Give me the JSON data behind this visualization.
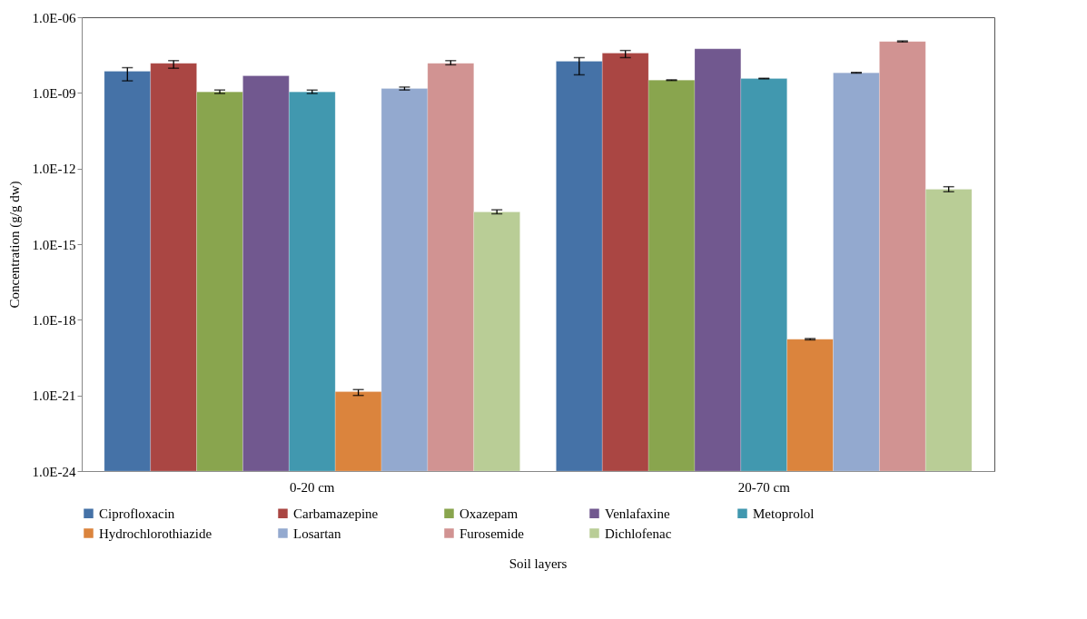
{
  "chart_data": {
    "type": "bar",
    "xlabel": "Soil layers",
    "ylabel": "Concentration (g/g dw)",
    "categories": [
      "0-20 cm",
      "20-70 cm"
    ],
    "log": true,
    "ylim": [
      1e-24,
      1e-06
    ],
    "yticks": [
      {
        "value": 1e-24,
        "label": "1.0E-24"
      },
      {
        "value": 1e-21,
        "label": "1.0E-21"
      },
      {
        "value": 1e-18,
        "label": "1.0E-18"
      },
      {
        "value": 1e-15,
        "label": "1.0E-15"
      },
      {
        "value": 1e-12,
        "label": "1.0E-12"
      },
      {
        "value": 1e-09,
        "label": "1.0E-09"
      },
      {
        "value": 1e-06,
        "label": "1.0E-06"
      }
    ],
    "grid": false,
    "legend": "bottom",
    "series": [
      {
        "name": "Ciprofloxacin",
        "color": "#4572a7",
        "values": [
          7.2e-09,
          1.8e-08
        ],
        "errors": [
          [
            3e-09,
            1e-08
          ],
          [
            5.2e-09,
            2.5e-08
          ]
        ]
      },
      {
        "name": "Carbamazepine",
        "color": "#aa4643",
        "values": [
          1.5e-08,
          3.8e-08
        ],
        "errors": [
          [
            9.5e-09,
            1.9e-08
          ],
          [
            2.5e-08,
            4.8e-08
          ]
        ]
      },
      {
        "name": "Oxazepam",
        "color": "#89a54e",
        "values": [
          1.1e-09,
          3.2e-09
        ],
        "errors": [
          [
            9.5e-10,
            1.3e-09
          ],
          [
            3.1e-09,
            3.3e-09
          ]
        ]
      },
      {
        "name": "Venlafaxine",
        "color": "#71588f",
        "values": [
          4.8e-09,
          5.6e-08
        ],
        "errors": [
          null,
          null
        ]
      },
      {
        "name": "Metoprolol",
        "color": "#4198af",
        "values": [
          1.1e-09,
          3.7e-09
        ],
        "errors": [
          [
            9.5e-10,
            1.3e-09
          ],
          [
            3.6e-09,
            3.8e-09
          ]
        ]
      },
      {
        "name": "Hydrochlorothiazide",
        "color": "#db843d",
        "values": [
          1.4e-21,
          1.7e-19
        ],
        "errors": [
          [
            1e-21,
            1.7e-21
          ],
          [
            1.6e-19,
            1.8e-19
          ]
        ]
      },
      {
        "name": "Losartan",
        "color": "#93a9cf",
        "values": [
          1.5e-09,
          6.3e-09
        ],
        "errors": [
          [
            1.3e-09,
            1.7e-09
          ],
          [
            6.1e-09,
            6.5e-09
          ]
        ]
      },
      {
        "name": "Furosemide",
        "color": "#d19392",
        "values": [
          1.5e-08,
          1.1e-07
        ],
        "errors": [
          [
            1.3e-08,
            1.9e-08
          ],
          [
            1.05e-07,
            1.15e-07
          ]
        ]
      },
      {
        "name": "Dichlofenac",
        "color": "#b9cd96",
        "values": [
          1.9e-14,
          1.5e-13
        ],
        "errors": [
          [
            1.6e-14,
            2.3e-14
          ],
          [
            1.2e-13,
            1.9e-13
          ]
        ]
      }
    ]
  }
}
